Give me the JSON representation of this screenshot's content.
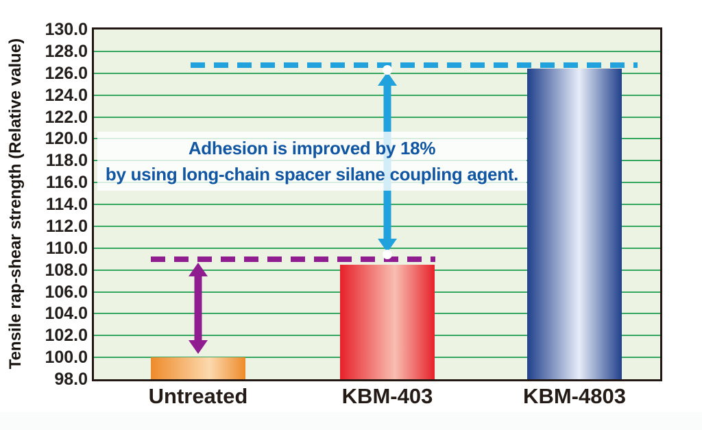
{
  "colors": {
    "plot_background": "#ecf3e3",
    "plot_border": "#231713",
    "gridline_green": "#33a65f",
    "axis_text": "#221d1a",
    "annotation_text_blue": "#1156a3",
    "purple_accent": "#8f1d90",
    "cyan_accent": "#21a2dc",
    "bar_orange_edge": "#ee8b2b",
    "bar_orange_center": "#fcd9ae",
    "bar_red_edge": "#e7212a",
    "bar_red_center": "#f8beb1",
    "bar_blue_edge": "#21418c",
    "bar_blue_center": "#e7ecf8"
  },
  "annotation": {
    "line1": "Adhesion is improved by 18%",
    "line2": "by using long-chain spacer silane coupling agent."
  },
  "chart_data": {
    "type": "bar",
    "title": "",
    "categories": [
      "Untreated",
      "KBM-403",
      "KBM-4803"
    ],
    "values": [
      100.0,
      108.5,
      126.4
    ],
    "xlabel": "",
    "ylabel": "Tensile rap-shear strength (Relative value)",
    "ylim": [
      98.0,
      130.0
    ],
    "ytick_step": 2.0,
    "ytick_labels": [
      "130.0",
      "128.0",
      "126.0",
      "124.0",
      "122.0",
      "120.0",
      "118.0",
      "116.0",
      "114.0",
      "112.0",
      "110.0",
      "108.0",
      "106.0",
      "104.0",
      "102.0",
      "100.0",
      "98.0"
    ],
    "grid": "horizontal-major",
    "legend": false,
    "bar_gradients": [
      {
        "edge": "#ee8b2b",
        "center": "#fcd9ae",
        "center_pos": 62
      },
      {
        "edge": "#e7212a",
        "center": "#f8beb1",
        "center_pos": 58
      },
      {
        "edge": "#21418c",
        "center": "#e7ecf8",
        "center_pos": 55
      }
    ],
    "reference_lines": [
      {
        "name": "kbm4803-level",
        "value": 126.75,
        "style": "dashed",
        "color": "#21a2dc"
      },
      {
        "name": "kbm403-level",
        "value": 108.95,
        "style": "dashed",
        "color": "#8f1d90"
      }
    ],
    "range_arrows": [
      {
        "name": "untreated-to-kbm403",
        "at_category": 0,
        "from_value": 100.35,
        "to_value": 108.65,
        "color": "#8f1d90",
        "endpoints": "none"
      },
      {
        "name": "kbm403-to-kbm4803",
        "at_category": 1,
        "from_value": 109.4,
        "to_value": 126.3,
        "color": "#21a2dc",
        "endpoints": "white-circles"
      }
    ],
    "annotations": [
      "Adhesion is improved by 18% by using long-chain spacer silane coupling agent."
    ]
  }
}
